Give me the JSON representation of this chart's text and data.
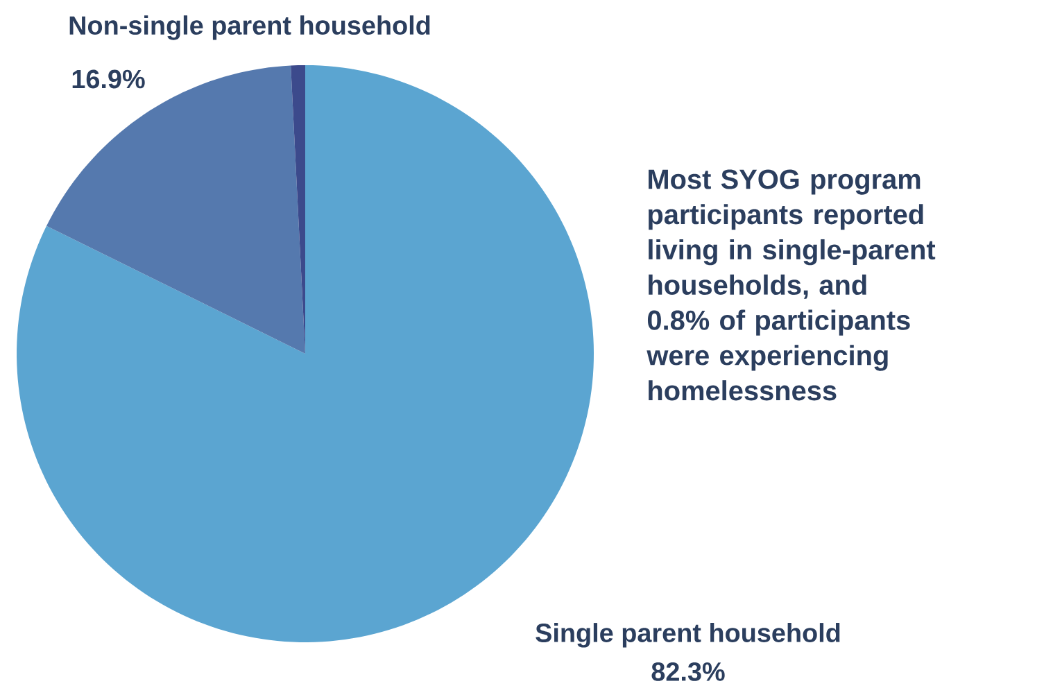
{
  "chart_data": {
    "type": "pie",
    "categories": [
      "Single parent household",
      "Non-single parent household",
      null
    ],
    "values": [
      82.3,
      16.9,
      0.8
    ],
    "value_labels": [
      "82.3%",
      "16.9%",
      null
    ],
    "colors": [
      "#5ba5d1",
      "#5579ae",
      "#3c4a8c"
    ],
    "annotations": [
      "Most SYOG program participants reported living in single-parent households, and 0.8% of participants were experiencing homelessness"
    ]
  }
}
